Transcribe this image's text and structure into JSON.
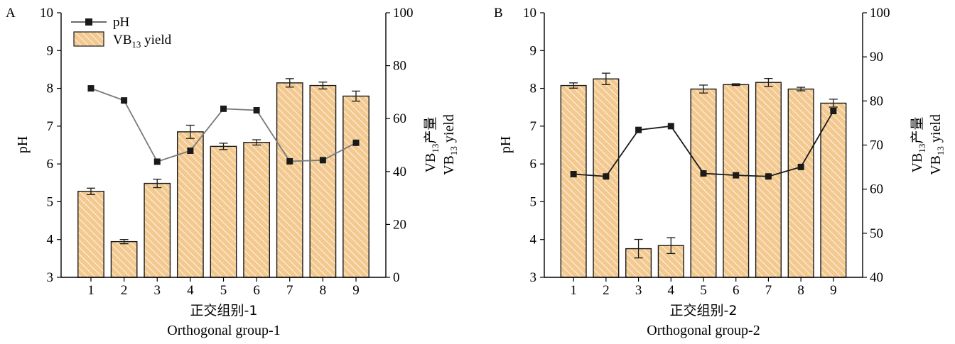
{
  "colors": {
    "bar_fill": "#f3c98f",
    "bar_hatch": "#ffffff",
    "ph_line_A": "#7a7a7a",
    "ph_line_B": "#1a1a1a",
    "marker": "#1a1a1a"
  },
  "legend": {
    "ph_label": "pH",
    "yield_label_main": "VB",
    "yield_label_sub": "13",
    "yield_label_tail": " yield"
  },
  "chart_data": [
    {
      "id": "A",
      "type": "bar+line",
      "panel_label": "A",
      "categories": [
        "1",
        "2",
        "3",
        "4",
        "5",
        "6",
        "7",
        "8",
        "9"
      ],
      "xlabel_cn": "正交组别-1",
      "xlabel_en": "Orthogonal group-1",
      "y_left": {
        "label": "pH",
        "range": [
          3,
          10
        ],
        "ticks": [
          3,
          4,
          5,
          6,
          7,
          8,
          9,
          10
        ]
      },
      "y_right": {
        "label_cn_main": "VB",
        "label_cn_sub": "13",
        "label_cn_tail": "产量",
        "label_en_main": "VB",
        "label_en_sub": "13",
        "label_en_tail": " yield",
        "range": [
          0,
          100
        ],
        "ticks": [
          0,
          20,
          40,
          60,
          80,
          100
        ]
      },
      "series": [
        {
          "name": "VB13 yield",
          "axis": "right",
          "kind": "bar",
          "values": [
            32.5,
            13.5,
            35.5,
            55.0,
            49.5,
            51.0,
            73.5,
            72.5,
            68.5
          ],
          "errors": [
            1.2,
            0.8,
            1.6,
            2.5,
            1.2,
            1.0,
            1.6,
            1.3,
            1.9
          ]
        },
        {
          "name": "pH",
          "axis": "left",
          "kind": "line",
          "values": [
            8.0,
            7.68,
            6.06,
            6.35,
            7.46,
            7.42,
            6.07,
            6.1,
            6.56
          ]
        }
      ]
    },
    {
      "id": "B",
      "type": "bar+line",
      "panel_label": "B",
      "categories": [
        "1",
        "2",
        "3",
        "4",
        "5",
        "6",
        "7",
        "8",
        "9"
      ],
      "xlabel_cn": "正交组别-2",
      "xlabel_en": "Orthogonal group-2",
      "y_left": {
        "label": "pH",
        "range": [
          3,
          10
        ],
        "ticks": [
          3,
          4,
          5,
          6,
          7,
          8,
          9,
          10
        ]
      },
      "y_right": {
        "label_cn_main": "VB",
        "label_cn_sub": "13",
        "label_cn_tail": "产量",
        "label_en_main": "VB",
        "label_en_sub": "13",
        "label_en_tail": " yield",
        "range": [
          40,
          100
        ],
        "ticks": [
          40,
          50,
          60,
          70,
          80,
          90,
          100
        ]
      },
      "series": [
        {
          "name": "VB13 yield",
          "axis": "right",
          "kind": "bar",
          "values": [
            83.5,
            85.0,
            46.5,
            47.2,
            82.7,
            83.7,
            84.2,
            82.7,
            79.5
          ],
          "errors": [
            0.6,
            1.3,
            2.1,
            1.8,
            0.9,
            0.2,
            0.9,
            0.4,
            0.9
          ]
        },
        {
          "name": "pH",
          "axis": "left",
          "kind": "line",
          "values": [
            5.73,
            5.67,
            6.9,
            7.0,
            5.75,
            5.7,
            5.67,
            5.92,
            7.4
          ]
        }
      ]
    }
  ]
}
